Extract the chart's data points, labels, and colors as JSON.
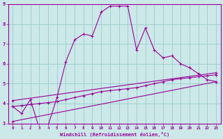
{
  "xlabel": "Windchill (Refroidissement éolien,°C)",
  "background_color": "#cce8e8",
  "grid_color": "#99cccc",
  "line_color": "#990099",
  "xlim": [
    -0.5,
    23.5
  ],
  "ylim": [
    3,
    9
  ],
  "xticks": [
    0,
    1,
    2,
    3,
    4,
    5,
    6,
    7,
    8,
    9,
    10,
    11,
    12,
    13,
    14,
    15,
    16,
    17,
    18,
    19,
    20,
    21,
    22,
    23
  ],
  "yticks": [
    3,
    4,
    5,
    6,
    7,
    8,
    9
  ],
  "line1_x": [
    0,
    1,
    2,
    3,
    4,
    5,
    6,
    7,
    8,
    9,
    10,
    11,
    12,
    13,
    14,
    15,
    16,
    17,
    18,
    19,
    20,
    21,
    22,
    23
  ],
  "line1_y": [
    3.85,
    3.5,
    4.2,
    2.75,
    2.9,
    4.3,
    6.1,
    7.2,
    7.5,
    7.4,
    8.6,
    8.9,
    8.9,
    8.9,
    6.7,
    7.8,
    6.7,
    6.3,
    6.4,
    6.0,
    5.8,
    5.5,
    5.2,
    5.1
  ],
  "line2_x": [
    0,
    1,
    2,
    3,
    4,
    5,
    6,
    7,
    8,
    9,
    10,
    11,
    12,
    13,
    14,
    15,
    16,
    17,
    18,
    19,
    20,
    21,
    22,
    23
  ],
  "line2_y": [
    3.85,
    3.9,
    3.95,
    4.0,
    4.05,
    4.1,
    4.2,
    4.3,
    4.4,
    4.5,
    4.6,
    4.65,
    4.7,
    4.75,
    4.8,
    4.9,
    5.0,
    5.1,
    5.2,
    5.25,
    5.3,
    5.35,
    5.4,
    5.45
  ],
  "line3_x": [
    0,
    23
  ],
  "line3_y": [
    4.15,
    5.55
  ],
  "line4_x": [
    0,
    23
  ],
  "line4_y": [
    3.1,
    5.1
  ]
}
